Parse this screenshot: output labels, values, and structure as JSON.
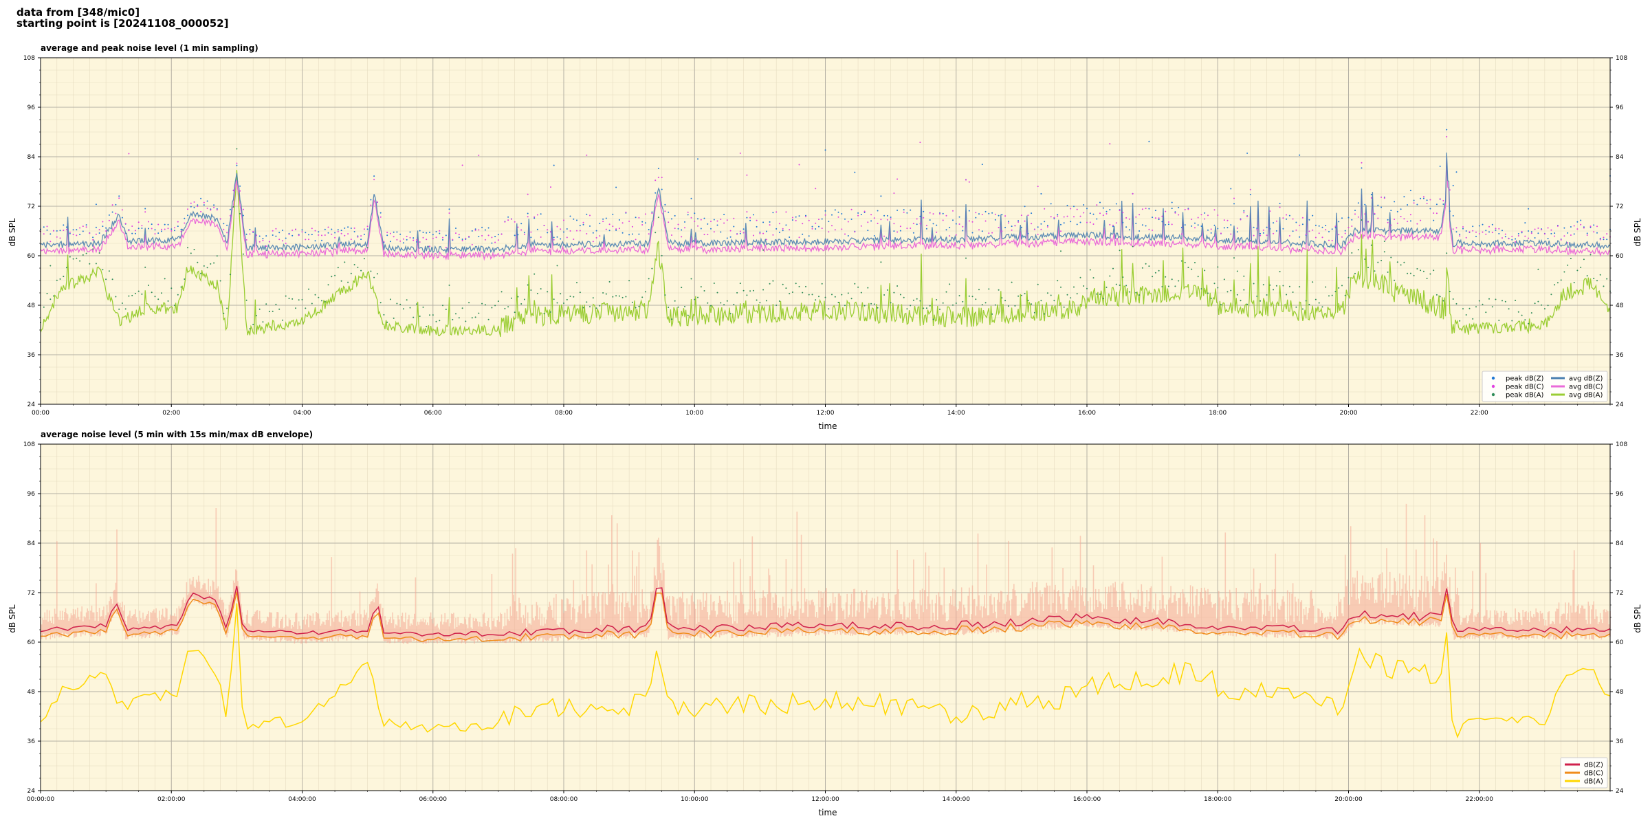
{
  "header": {
    "line1": "data from [348/mic0]",
    "line2": "starting point is [20241108_000052]"
  },
  "chart_data": [
    {
      "type": "line",
      "title": "average and peak noise level (1 min sampling)",
      "xlabel": "time",
      "ylabel": "dB SPL",
      "ylabel_right": "dB SPL",
      "xlim_hours": [
        0,
        24
      ],
      "ylim": [
        24,
        108
      ],
      "yticks": [
        24,
        36,
        48,
        60,
        72,
        84,
        96,
        108
      ],
      "xtick_labels": [
        "00:00",
        "02:00",
        "04:00",
        "06:00",
        "08:00",
        "10:00",
        "12:00",
        "14:00",
        "16:00",
        "18:00",
        "20:00",
        "22:00"
      ],
      "grid": true,
      "background": "#fdf6dc",
      "legend_position": "lower-right",
      "series": [
        {
          "name": "peak dB(Z)",
          "kind": "scatter",
          "color": "#1f77d4"
        },
        {
          "name": "peak dB(C)",
          "kind": "scatter",
          "color": "#e040e0"
        },
        {
          "name": "peak dB(A)",
          "kind": "scatter",
          "color": "#2e8b57"
        },
        {
          "name": "avg dB(Z)",
          "kind": "line",
          "color": "#4a7fb0"
        },
        {
          "name": "avg dB(C)",
          "kind": "line",
          "color": "#ea6ad8"
        },
        {
          "name": "avg dB(A)",
          "kind": "line",
          "color": "#9acd32"
        }
      ],
      "base_levels": {
        "avg_z": [
          [
            0,
            62.5
          ],
          [
            0.9,
            63
          ],
          [
            1.2,
            70
          ],
          [
            1.35,
            63.5
          ],
          [
            2.1,
            64
          ],
          [
            2.3,
            70
          ],
          [
            2.7,
            69
          ],
          [
            2.85,
            63
          ],
          [
            3.0,
            80
          ],
          [
            3.15,
            62
          ],
          [
            4.0,
            62
          ],
          [
            5.0,
            63
          ],
          [
            5.1,
            75
          ],
          [
            5.25,
            62
          ],
          [
            6.0,
            61.5
          ],
          [
            7.0,
            61.5
          ],
          [
            7.3,
            62.5
          ],
          [
            9.3,
            63
          ],
          [
            9.45,
            77
          ],
          [
            9.6,
            63
          ],
          [
            12,
            63.5
          ],
          [
            14,
            64
          ],
          [
            16,
            65
          ],
          [
            18,
            64
          ],
          [
            19.9,
            62.5
          ],
          [
            20.1,
            66
          ],
          [
            21.4,
            66
          ],
          [
            21.5,
            75
          ],
          [
            21.6,
            63
          ],
          [
            23,
            63
          ],
          [
            24,
            62.5
          ]
        ],
        "avg_a": [
          [
            0,
            42
          ],
          [
            0.3,
            52
          ],
          [
            0.9,
            56
          ],
          [
            1.2,
            44
          ],
          [
            1.6,
            47
          ],
          [
            2.1,
            47.5
          ],
          [
            2.25,
            57
          ],
          [
            2.7,
            53
          ],
          [
            2.85,
            42
          ],
          [
            3.0,
            80
          ],
          [
            3.15,
            42
          ],
          [
            4.0,
            44
          ],
          [
            5.0,
            56
          ],
          [
            5.25,
            43
          ],
          [
            6.0,
            42
          ],
          [
            7.0,
            42
          ],
          [
            7.3,
            45
          ],
          [
            9.3,
            47
          ],
          [
            9.45,
            62
          ],
          [
            9.6,
            45
          ],
          [
            12,
            47
          ],
          [
            14,
            45
          ],
          [
            15.8,
            47
          ],
          [
            16.1,
            50
          ],
          [
            17.8,
            51
          ],
          [
            18,
            48
          ],
          [
            19.9,
            46
          ],
          [
            20.1,
            55
          ],
          [
            21.5,
            47
          ],
          [
            21.6,
            42
          ],
          [
            23,
            43
          ],
          [
            23.3,
            51
          ],
          [
            23.7,
            53
          ],
          [
            24,
            47
          ]
        ]
      },
      "note": "dense 1-minute samples rendered procedurally following base_levels"
    },
    {
      "type": "line",
      "title": "average noise level (5 min with 15s min/max dB envelope)",
      "xlabel": "time",
      "ylabel": "dB SPL",
      "ylabel_right": "dB SPL",
      "xlim_hours": [
        0,
        24
      ],
      "ylim": [
        24,
        108
      ],
      "yticks": [
        24,
        36,
        48,
        60,
        72,
        84,
        96,
        108
      ],
      "xtick_labels": [
        "00:00:00",
        "02:00:00",
        "04:00:00",
        "06:00:00",
        "08:00:00",
        "10:00:00",
        "12:00:00",
        "14:00:00",
        "16:00:00",
        "18:00:00",
        "20:00:00",
        "22:00:00"
      ],
      "grid": true,
      "background": "#fdf6dc",
      "legend_position": "lower-right",
      "series": [
        {
          "name": "dB(Z)",
          "kind": "line",
          "color": "#d0204a"
        },
        {
          "name": "dB(C)",
          "kind": "line",
          "color": "#f08c1a"
        },
        {
          "name": "dB(A)",
          "kind": "line",
          "color": "#ffd700"
        }
      ],
      "envelope_color": "#f4a894",
      "base_levels": {
        "avg_z": [
          [
            0,
            63
          ],
          [
            1.0,
            64
          ],
          [
            1.15,
            70
          ],
          [
            1.3,
            63
          ],
          [
            2.1,
            64
          ],
          [
            2.3,
            72
          ],
          [
            2.7,
            70
          ],
          [
            2.85,
            63
          ],
          [
            3.0,
            74
          ],
          [
            3.1,
            63
          ],
          [
            4.0,
            62
          ],
          [
            5.0,
            63
          ],
          [
            5.15,
            70
          ],
          [
            5.25,
            62
          ],
          [
            7.0,
            62
          ],
          [
            9.3,
            63.5
          ],
          [
            9.45,
            77
          ],
          [
            9.6,
            63
          ],
          [
            12,
            64
          ],
          [
            14,
            64
          ],
          [
            16,
            66
          ],
          [
            18,
            64
          ],
          [
            19.9,
            63
          ],
          [
            20.1,
            67
          ],
          [
            21.4,
            66
          ],
          [
            21.5,
            74
          ],
          [
            21.6,
            63
          ],
          [
            23,
            63
          ],
          [
            24,
            63
          ]
        ],
        "avg_a": [
          [
            0,
            40
          ],
          [
            0.3,
            48
          ],
          [
            1.0,
            52
          ],
          [
            1.2,
            44
          ],
          [
            1.6,
            47
          ],
          [
            2.1,
            47.5
          ],
          [
            2.25,
            59
          ],
          [
            2.7,
            53
          ],
          [
            2.85,
            42
          ],
          [
            3.0,
            70
          ],
          [
            3.1,
            40
          ],
          [
            4.0,
            41
          ],
          [
            5.0,
            55
          ],
          [
            5.25,
            40
          ],
          [
            6.0,
            39.5
          ],
          [
            7.0,
            40
          ],
          [
            7.3,
            44
          ],
          [
            9.3,
            45
          ],
          [
            9.45,
            60
          ],
          [
            9.6,
            44
          ],
          [
            12,
            46
          ],
          [
            14,
            43
          ],
          [
            15.8,
            47
          ],
          [
            16.1,
            50
          ],
          [
            17.8,
            53
          ],
          [
            18,
            49
          ],
          [
            19.9,
            45
          ],
          [
            20.1,
            56
          ],
          [
            21.4,
            52
          ],
          [
            21.5,
            60
          ],
          [
            21.6,
            40
          ],
          [
            23,
            41
          ],
          [
            23.3,
            50
          ],
          [
            23.7,
            53
          ],
          [
            24,
            47
          ]
        ]
      },
      "note": "dense 5-minute averages and envelope rendered procedurally following base_levels"
    }
  ]
}
